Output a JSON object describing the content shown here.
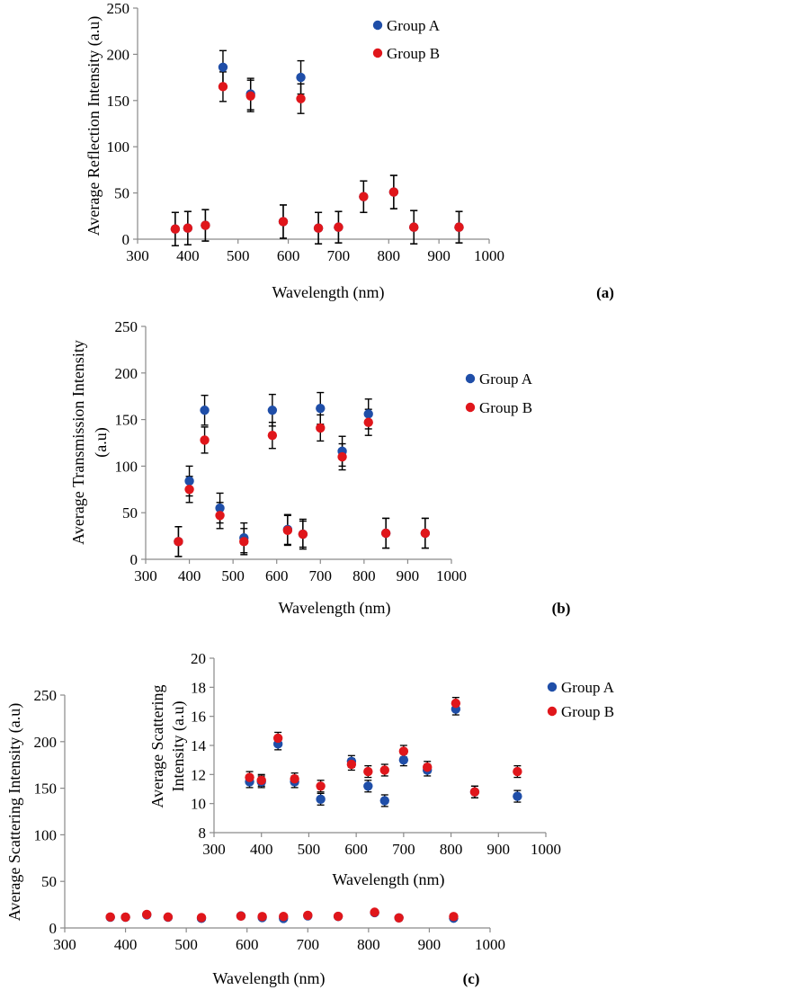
{
  "colors": {
    "group_a": "#1f4ea8",
    "group_b": "#e0161b",
    "axis": "#8a8a8a",
    "errorbar": "#000000"
  },
  "chart_data": [
    {
      "type": "scatter",
      "panel_label": "(a)",
      "xlabel": "Wavelength (nm)",
      "ylabel": "Average Reflection Intensity (a.u)",
      "xlim": [
        300,
        1000
      ],
      "ylim": [
        0,
        250
      ],
      "xticks": [
        "300",
        "400",
        "500",
        "600",
        "700",
        "800",
        "900",
        "1000"
      ],
      "yticks": [
        "0",
        "50",
        "100",
        "150",
        "200",
        "250"
      ],
      "legend": [
        "Group A",
        "Group B"
      ],
      "series": [
        {
          "name": "Group A",
          "x": [
            375,
            400,
            435,
            470,
            525,
            590,
            625,
            660,
            700,
            750,
            810,
            850,
            940
          ],
          "y": [
            11,
            12,
            15,
            186,
            157,
            19,
            175,
            12,
            13,
            46,
            51,
            13,
            13
          ],
          "err": [
            18,
            18,
            17,
            18,
            17,
            18,
            18,
            17,
            17,
            17,
            18,
            18,
            17
          ]
        },
        {
          "name": "Group B",
          "x": [
            375,
            400,
            435,
            470,
            525,
            590,
            625,
            660,
            700,
            750,
            810,
            850,
            940
          ],
          "y": [
            11,
            12,
            15,
            165,
            155,
            19,
            152,
            12,
            13,
            46,
            51,
            13,
            13
          ],
          "err": [
            18,
            18,
            17,
            16,
            17,
            18,
            16,
            17,
            17,
            17,
            18,
            18,
            17
          ]
        }
      ]
    },
    {
      "type": "scatter",
      "panel_label": "(b)",
      "xlabel": "Wavelength (nm)",
      "ylabel_lines": [
        "Average Transmission Intensity",
        "(a.u)"
      ],
      "xlim": [
        300,
        1000
      ],
      "ylim": [
        0,
        250
      ],
      "xticks": [
        "300",
        "400",
        "500",
        "600",
        "700",
        "800",
        "900",
        "1000"
      ],
      "yticks": [
        "0",
        "50",
        "100",
        "150",
        "200",
        "250"
      ],
      "legend": [
        "Group A",
        "Group B"
      ],
      "series": [
        {
          "name": "Group A",
          "x": [
            375,
            400,
            435,
            470,
            525,
            590,
            625,
            660,
            700,
            750,
            810,
            850,
            940
          ],
          "y": [
            19,
            84,
            160,
            55,
            23,
            160,
            32,
            27,
            162,
            116,
            156,
            28,
            28
          ],
          "err": [
            16,
            16,
            16,
            16,
            16,
            17,
            16,
            16,
            17,
            16,
            16,
            16,
            16
          ]
        },
        {
          "name": "Group B",
          "x": [
            375,
            400,
            435,
            470,
            525,
            590,
            625,
            660,
            700,
            750,
            810,
            850,
            940
          ],
          "y": [
            19,
            75,
            128,
            47,
            19,
            133,
            31,
            27,
            141,
            110,
            147,
            28,
            28
          ],
          "err": [
            16,
            14,
            14,
            14,
            14,
            14,
            16,
            14,
            14,
            14,
            14,
            16,
            16
          ]
        }
      ]
    },
    {
      "type": "scatter",
      "panel_label": "(c)",
      "xlabel": "Wavelength (nm)",
      "ylabel": "Average Scattering Intensity (a.u)",
      "xlim": [
        300,
        1000
      ],
      "ylim": [
        0,
        250
      ],
      "xticks": [
        "300",
        "400",
        "500",
        "600",
        "700",
        "800",
        "900",
        "1000"
      ],
      "yticks": [
        "0",
        "50",
        "100",
        "150",
        "200",
        "250"
      ],
      "series": [
        {
          "name": "Group A",
          "x": [
            375,
            400,
            435,
            470,
            525,
            590,
            625,
            660,
            700,
            750,
            810,
            850,
            940
          ],
          "y": [
            11.5,
            11.5,
            14.1,
            11.5,
            10.3,
            12.9,
            11.2,
            10.2,
            13,
            12.3,
            16.5,
            10.8,
            10.5
          ]
        },
        {
          "name": "Group B",
          "x": [
            375,
            400,
            435,
            470,
            525,
            590,
            625,
            660,
            700,
            750,
            810,
            850,
            940
          ],
          "y": [
            11.8,
            11.6,
            14.5,
            11.7,
            11.2,
            12.7,
            12.2,
            12.3,
            13.6,
            12.5,
            16.9,
            10.8,
            12.2
          ]
        }
      ],
      "inset": {
        "type": "scatter",
        "xlabel": "Wavelength (nm)",
        "ylabel_lines": [
          "Average Scattering",
          "Intensity (a.u)"
        ],
        "xlim": [
          300,
          1000
        ],
        "ylim": [
          8,
          20
        ],
        "xticks": [
          "300",
          "400",
          "500",
          "600",
          "700",
          "800",
          "900",
          "1000"
        ],
        "yticks": [
          "8",
          "10",
          "12",
          "14",
          "16",
          "18",
          "20"
        ],
        "legend": [
          "Group A",
          "Group B"
        ],
        "series": [
          {
            "name": "Group A",
            "x": [
              375,
              400,
              435,
              470,
              525,
              590,
              625,
              660,
              700,
              750,
              810,
              850,
              940
            ],
            "y": [
              11.5,
              11.5,
              14.1,
              11.5,
              10.3,
              12.9,
              11.2,
              10.2,
              13,
              12.3,
              16.5,
              10.8,
              10.5
            ],
            "err": [
              0.4,
              0.4,
              0.4,
              0.4,
              0.4,
              0.4,
              0.4,
              0.4,
              0.4,
              0.4,
              0.4,
              0.4,
              0.4
            ]
          },
          {
            "name": "Group B",
            "x": [
              375,
              400,
              435,
              470,
              525,
              590,
              625,
              660,
              700,
              750,
              810,
              850,
              940
            ],
            "y": [
              11.8,
              11.6,
              14.5,
              11.7,
              11.2,
              12.7,
              12.2,
              12.3,
              13.6,
              12.5,
              16.9,
              10.8,
              12.2
            ],
            "err": [
              0.4,
              0.4,
              0.4,
              0.4,
              0.4,
              0.4,
              0.4,
              0.4,
              0.4,
              0.4,
              0.4,
              0.4,
              0.4
            ]
          }
        ]
      }
    }
  ]
}
